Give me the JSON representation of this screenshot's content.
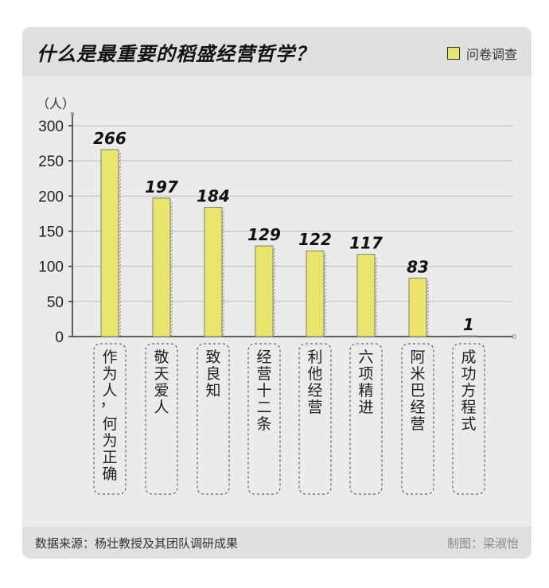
{
  "title": "什么是最重要的稻盛经营哲学？",
  "legend": {
    "label": "问卷调查"
  },
  "footer": {
    "source": "数据来源：杨壮教授及其团队调研成果",
    "credit": "制图：梁淑怡"
  },
  "colors": {
    "bar": "#eae56c",
    "axis": "#333333",
    "grid": "#bdbdbd"
  },
  "chart_data": {
    "type": "bar",
    "ylabel": "（人）",
    "ylim": [
      0,
      300
    ],
    "yticks": [
      0,
      50,
      100,
      150,
      200,
      250,
      300
    ],
    "categories": [
      "作为人，何为正确",
      "敬天爱人",
      "致良知",
      "经营十二条",
      "利他经营",
      "六项精进",
      "阿米巴经营",
      "成功方程式"
    ],
    "values": [
      266,
      197,
      184,
      129,
      122,
      117,
      83,
      1
    ],
    "legend": "问卷调查",
    "grid": true
  }
}
